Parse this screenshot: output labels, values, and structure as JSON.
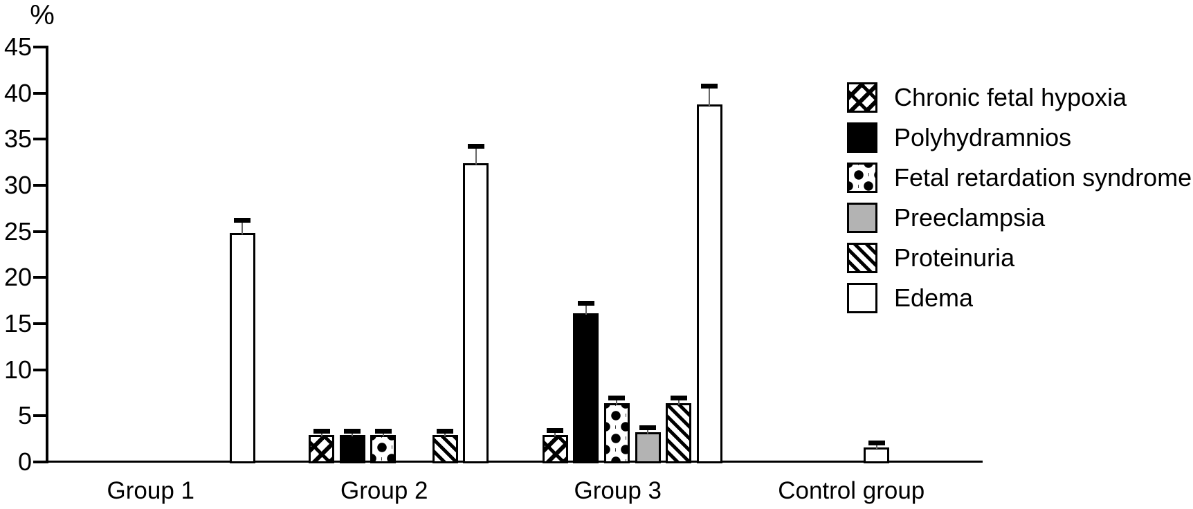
{
  "chart_data": {
    "type": "bar",
    "title": "",
    "ylabel": "%",
    "xlabel": "",
    "ylim": [
      0,
      45
    ],
    "yticks": [
      0,
      5,
      10,
      15,
      20,
      25,
      30,
      35,
      40,
      45
    ],
    "grid": false,
    "error_bars": true,
    "legend_position": "right",
    "categories": [
      "Group 1",
      "Group 2",
      "Group 3",
      "Control group"
    ],
    "series": [
      {
        "name": "Chronic fetal hypoxia",
        "pattern": "diagonal-brick",
        "values": [
          0,
          2.9,
          2.9,
          0
        ],
        "errors": [
          0,
          0.4,
          0.5,
          0
        ]
      },
      {
        "name": "Polyhydramnios",
        "pattern": "solid-black",
        "values": [
          0,
          2.9,
          16.1,
          0
        ],
        "errors": [
          0,
          0.4,
          1.1,
          0
        ]
      },
      {
        "name": "Fetal retardation syndrome",
        "pattern": "black-dots",
        "values": [
          0,
          2.9,
          6.4,
          0
        ],
        "errors": [
          0,
          0.4,
          0.5,
          0
        ]
      },
      {
        "name": "Preeclampsia",
        "pattern": "solid-gray",
        "values": [
          0,
          0,
          3.2,
          0
        ],
        "errors": [
          0,
          0,
          0.45,
          0
        ]
      },
      {
        "name": "Proteinuria",
        "pattern": "diagonal-lines",
        "values": [
          0,
          2.9,
          6.4,
          0
        ],
        "errors": [
          0,
          0.4,
          0.5,
          0
        ]
      },
      {
        "name": "Edema",
        "pattern": "white",
        "values": [
          24.8,
          32.4,
          38.8,
          1.6
        ],
        "errors": [
          1.4,
          1.8,
          1.9,
          0.45
        ]
      }
    ]
  },
  "colors": {
    "bar_outline": "#000000",
    "solid_black": "#000000",
    "gray_fill": "#b3b3b3",
    "background": "#ffffff",
    "error_cap": "#000000",
    "error_line": "#666666"
  }
}
